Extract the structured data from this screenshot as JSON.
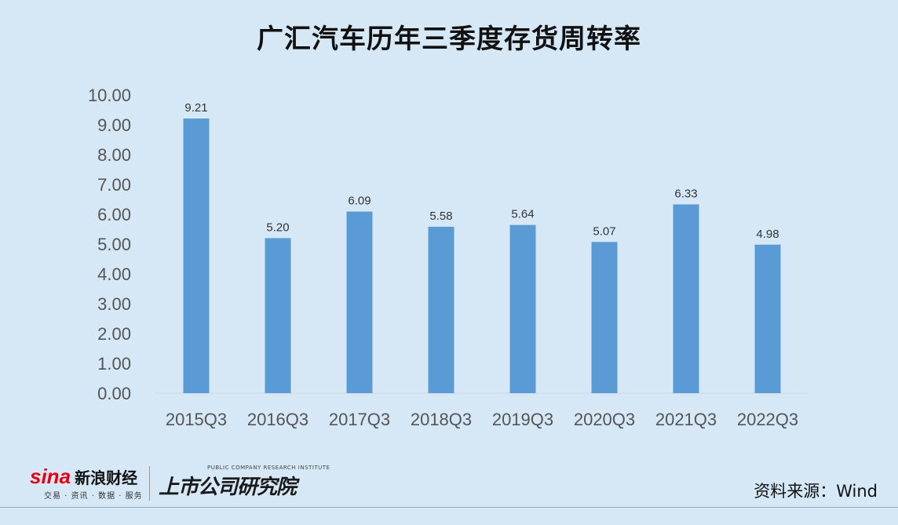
{
  "chart_data": {
    "type": "bar",
    "title": "广汇汽车历年三季度存货周转率",
    "categories": [
      "2015Q3",
      "2016Q3",
      "2017Q3",
      "2018Q3",
      "2019Q3",
      "2020Q3",
      "2021Q3",
      "2022Q3"
    ],
    "values": [
      9.21,
      5.2,
      6.09,
      5.58,
      5.64,
      5.07,
      6.33,
      4.98
    ],
    "data_labels": [
      "9.21",
      "5.20",
      "6.09",
      "5.58",
      "5.64",
      "5.07",
      "6.33",
      "4.98"
    ],
    "yticks": [
      "0.00",
      "1.00",
      "2.00",
      "3.00",
      "4.00",
      "5.00",
      "6.00",
      "7.00",
      "8.00",
      "9.00",
      "10.00"
    ],
    "ylim": [
      0,
      10
    ],
    "grid": false,
    "xlabel": "",
    "ylabel": "",
    "bar_color": "#5b9bd5",
    "highlight_label_color": "#e60012",
    "highlight_index": 7
  },
  "footer": {
    "source": "资料来源：Wind",
    "sina_mark": "sina",
    "sina_name": "新浪财经",
    "sina_tagline": "交易 · 资讯 · 数据 · 服务",
    "research_en": "PUBLIC COMPANY RESEARCH INSTITUTE",
    "research_cn": "上市公司研究院"
  },
  "colors": {
    "background": "#d6e8f6"
  }
}
